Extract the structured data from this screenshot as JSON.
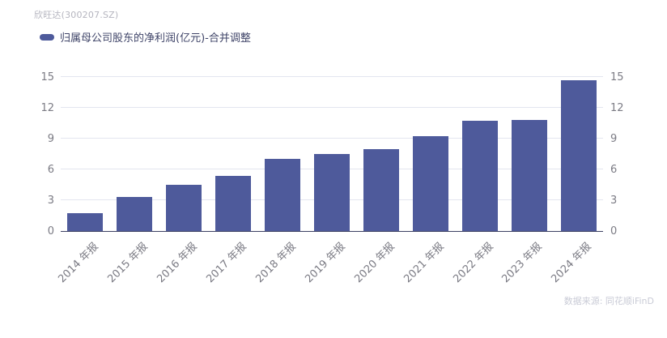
{
  "header": {
    "title": "欣旺达(300207.SZ)"
  },
  "legend": {
    "label": "归属母公司股东的净利润(亿元)-合并调整",
    "marker_color": "#4e5a9b"
  },
  "footer": {
    "source": "数据来源: 同花顺iFinD"
  },
  "colors": {
    "bar": "#4e5a9b",
    "grid": "#e3e5ef",
    "axis": "#3d4263",
    "tick_label": "#7b7b84",
    "title": "#b5b5bf",
    "legend_text": "#3f4468",
    "source_text": "#c9cbd6"
  },
  "chart_data": {
    "type": "bar",
    "title": "欣旺达(300207.SZ)",
    "series_name": "归属母公司股东的净利润(亿元)-合并调整",
    "categories": [
      "2014 年报",
      "2015 年报",
      "2016 年报",
      "2017 年报",
      "2018 年报",
      "2019 年报",
      "2020 年报",
      "2021 年报",
      "2022 年报",
      "2023 年报",
      "2024 年报"
    ],
    "values": [
      1.7,
      3.3,
      4.5,
      5.4,
      7.0,
      7.5,
      8.0,
      9.2,
      10.7,
      10.8,
      14.7
    ],
    "xlabel": "",
    "ylabel": "",
    "ylim": [
      0,
      15
    ],
    "yticks": [
      0,
      3,
      6,
      9,
      12,
      15
    ],
    "grid": true,
    "legend_position": "top-left",
    "y_axis_sides": "both",
    "x_label_rotation": -45
  }
}
